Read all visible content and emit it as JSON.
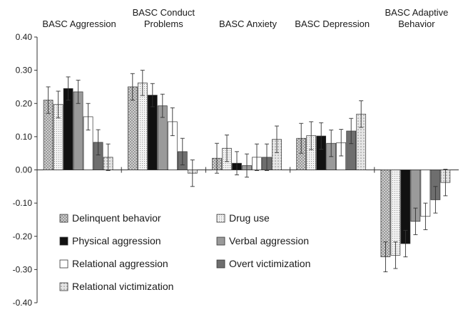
{
  "chart_data": {
    "type": "bar",
    "categories": [
      "BASC Aggression",
      "BASC Conduct Problems",
      "BASC Anxiety",
      "BASC Depression",
      "BASC Adaptive Behavior"
    ],
    "category_label_lines": [
      [
        "BASC Aggression"
      ],
      [
        "BASC Conduct",
        "Problems"
      ],
      [
        "BASC Anxiety"
      ],
      [
        "BASC Depression"
      ],
      [
        "BASC Adaptive",
        "Behavior"
      ]
    ],
    "ylim": [
      -0.4,
      0.4
    ],
    "yticks": [
      "0.40",
      "0.30",
      "0.20",
      "0.10",
      "0.00",
      "-0.10",
      "-0.20",
      "-0.30",
      "-0.40"
    ],
    "grid": false,
    "legend_position": "bottom-left (inside plot)",
    "series": [
      {
        "name": "Delinquent behavior",
        "pattern": "dots",
        "values": [
          0.21,
          0.25,
          0.035,
          0.095,
          -0.262
        ],
        "errors": [
          0.04,
          0.04,
          0.045,
          0.045,
          0.045
        ]
      },
      {
        "name": "Drug use",
        "pattern": "fine-dots",
        "values": [
          0.197,
          0.262,
          0.065,
          0.103,
          -0.257
        ],
        "errors": [
          0.04,
          0.038,
          0.04,
          0.042,
          0.04
        ]
      },
      {
        "name": "Physical aggression",
        "pattern": "black",
        "values": [
          0.245,
          0.225,
          0.02,
          0.102,
          -0.222
        ],
        "errors": [
          0.035,
          0.035,
          0.035,
          0.04,
          0.04
        ]
      },
      {
        "name": "Verbal aggression",
        "pattern": "mid-gray",
        "values": [
          0.235,
          0.193,
          0.013,
          0.08,
          -0.155
        ],
        "errors": [
          0.035,
          0.035,
          0.035,
          0.04,
          0.04
        ]
      },
      {
        "name": "Relational aggression",
        "pattern": "white",
        "values": [
          0.16,
          0.145,
          0.038,
          0.082,
          -0.14
        ],
        "errors": [
          0.04,
          0.042,
          0.04,
          0.04,
          0.04
        ]
      },
      {
        "name": "Overt victimization",
        "pattern": "dark-gray",
        "values": [
          0.083,
          0.055,
          0.038,
          0.117,
          -0.09
        ],
        "errors": [
          0.038,
          0.04,
          0.04,
          0.038,
          0.04
        ]
      },
      {
        "name": "Relational victimization",
        "pattern": "light-dots",
        "values": [
          0.038,
          -0.01,
          0.092,
          0.168,
          -0.038
        ],
        "errors": [
          0.04,
          0.04,
          0.04,
          0.04,
          0.04
        ]
      }
    ]
  }
}
